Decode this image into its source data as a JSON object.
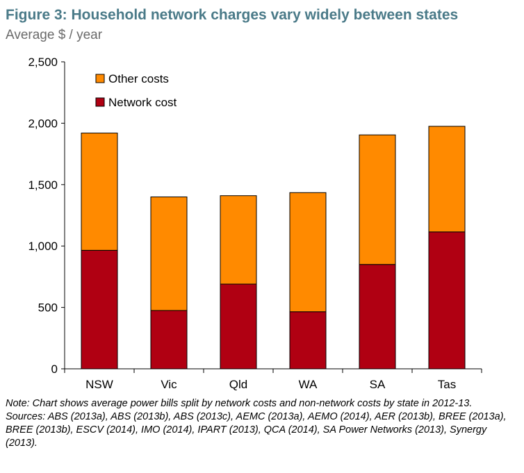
{
  "title": "Figure 3: Household network charges vary widely between states",
  "subtitle": "Average $ / year",
  "chart_data": {
    "type": "bar",
    "stacked": true,
    "categories": [
      "NSW",
      "Vic",
      "Qld",
      "WA",
      "SA",
      "Tas"
    ],
    "series": [
      {
        "name": "Network cost",
        "color": "#b00012",
        "values": [
          965,
          475,
          690,
          465,
          850,
          1115
        ]
      },
      {
        "name": "Other costs",
        "color": "#ff8a00",
        "values": [
          955,
          925,
          720,
          970,
          1055,
          860
        ]
      }
    ],
    "yticks": [
      "0",
      "500",
      "1,000",
      "1,500",
      "2,000",
      "2,500"
    ],
    "ylim": [
      0,
      2500
    ],
    "grid": false,
    "legend_position": "top-left"
  },
  "notes": {
    "note": "Note:  Chart shows average power bills split by network costs and non-network costs by state in 2012-13.",
    "sources": "Sources:  ABS (2013a), ABS (2013b), ABS (2013c), AEMC (2013a), AEMO (2014), AER (2013b), BREE (2013a), BREE (2013b), ESCV (2014), IMO (2014), IPART (2013), QCA (2014), SA Power Networks (2013), Synergy (2013)."
  }
}
